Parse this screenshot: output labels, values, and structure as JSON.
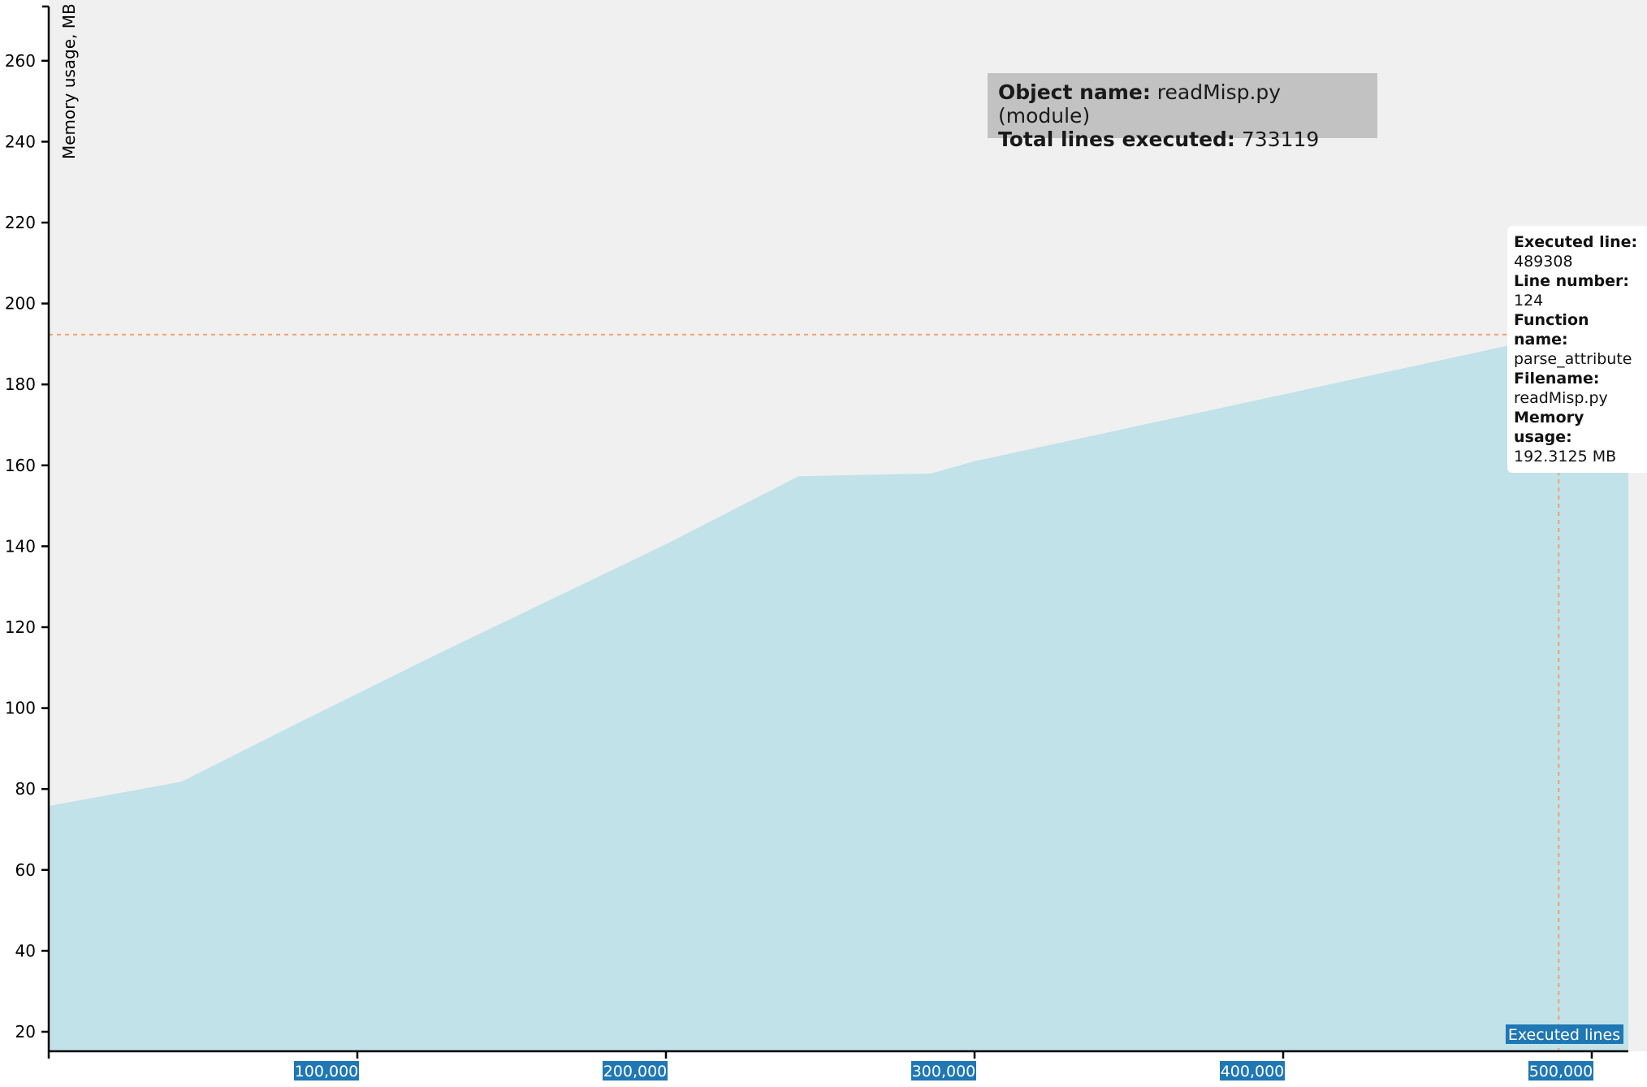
{
  "chart_data": {
    "type": "area",
    "ylabel": "Memory usage, MB",
    "xlabel": "Executed lines",
    "xlim": [
      0,
      512000
    ],
    "ylim": [
      15,
      265
    ],
    "x_ticks": [
      100000,
      200000,
      300000,
      400000,
      500000
    ],
    "x_tick_labels": [
      "100,000",
      "200,000",
      "300,000",
      "400,000",
      "500,000"
    ],
    "y_ticks": [
      20,
      40,
      60,
      80,
      100,
      120,
      140,
      160,
      180,
      200,
      220,
      240,
      260
    ],
    "x": [
      0,
      43000,
      80000,
      125000,
      200000,
      243000,
      286000,
      300000,
      400000,
      489308,
      512000
    ],
    "y": [
      75.8,
      81.8,
      96.0,
      113.0,
      140.5,
      157.3,
      158.0,
      161.0,
      177.5,
      192.3,
      192.3
    ],
    "fill_color": "#c0e2e8",
    "highlight": {
      "x": 489308,
      "y": 192.3125,
      "line_color": "#f4a070"
    }
  },
  "info": {
    "object_label": "Object name:",
    "object_value": "readMisp.py (module)",
    "total_label": "Total lines executed:",
    "total_value": "733119"
  },
  "tooltip": {
    "executed_label": "Executed line:",
    "executed_value": "489308",
    "line_label": "Line number:",
    "line_value": "124",
    "function_label": "Function name:",
    "function_value": "parse_attribute",
    "filename_label": "Filename:",
    "filename_value": "readMisp.py",
    "memory_label": "Memory usage:",
    "memory_value": "192.3125 MB"
  },
  "colors": {
    "plot_bg": "#f0f0f0",
    "axis_label_bg": "#1f77b4"
  }
}
